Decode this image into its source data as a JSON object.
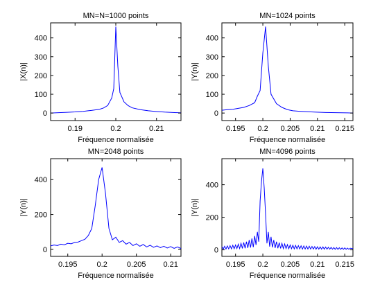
{
  "chart_data": [
    {
      "type": "line",
      "title": "MN=N=1000 points",
      "xlabel": "Fréquence normalisée",
      "ylabel": "|X(n)|",
      "xlim": [
        0.184,
        0.216
      ],
      "ylim": [
        -40,
        480
      ],
      "xticks": [
        0.19,
        0.2,
        0.21
      ],
      "xtick_labels": [
        "0.19",
        "0.2",
        "0.21"
      ],
      "yticks": [
        0,
        100,
        200,
        300,
        400
      ],
      "ytick_labels": [
        "0",
        "100",
        "200",
        "300",
        "400"
      ],
      "grid": false,
      "color": "#0000ff",
      "series": [
        {
          "x": [
            0.184,
            0.186,
            0.188,
            0.19,
            0.192,
            0.194,
            0.196,
            0.197,
            0.198,
            0.199,
            0.1995,
            0.2,
            0.2005,
            0.201,
            0.202,
            0.203,
            0.204,
            0.206,
            0.208,
            0.21,
            0.212,
            0.214,
            0.216
          ],
          "y": [
            0,
            2,
            4,
            6,
            9,
            14,
            20,
            27,
            40,
            80,
            130,
            460,
            250,
            110,
            60,
            40,
            28,
            18,
            12,
            8,
            5,
            3,
            1
          ]
        }
      ]
    },
    {
      "type": "line",
      "title": "MN=1024 points",
      "xlabel": "Fréquence normalisée",
      "ylabel": "|Y(n)|",
      "xlim": [
        0.1925,
        0.2165
      ],
      "ylim": [
        -40,
        480
      ],
      "xticks": [
        0.195,
        0.2,
        0.205,
        0.21,
        0.215
      ],
      "xtick_labels": [
        "0.195",
        "0.2",
        "0.205",
        "0.21",
        "0.215"
      ],
      "yticks": [
        0,
        100,
        200,
        300,
        400
      ],
      "ytick_labels": [
        "0",
        "100",
        "200",
        "300",
        "400"
      ],
      "grid": false,
      "color": "#0000ff",
      "series": [
        {
          "x": [
            0.1925,
            0.1935,
            0.1945,
            0.1955,
            0.1965,
            0.1975,
            0.1985,
            0.199,
            0.1995,
            0.2,
            0.2005,
            0.201,
            0.2015,
            0.2025,
            0.2035,
            0.2045,
            0.2055,
            0.2065,
            0.2075,
            0.2095,
            0.2115,
            0.2135,
            0.2155,
            0.2165
          ],
          "y": [
            15,
            18,
            20,
            25,
            30,
            40,
            55,
            90,
            120,
            320,
            460,
            250,
            100,
            50,
            30,
            18,
            12,
            10,
            8,
            5,
            3,
            2,
            1,
            0
          ]
        }
      ]
    },
    {
      "type": "line",
      "title": "MN=2048 points",
      "xlabel": "Fréquence normalisée",
      "ylabel": "|Y(n)|",
      "xlim": [
        0.1925,
        0.2115
      ],
      "ylim": [
        -40,
        520
      ],
      "xticks": [
        0.195,
        0.2,
        0.205,
        0.21
      ],
      "xtick_labels": [
        "0.195",
        "0.2",
        "0.205",
        "0.21"
      ],
      "yticks": [
        0,
        200,
        400
      ],
      "ytick_labels": [
        "0",
        "200",
        "400"
      ],
      "grid": false,
      "color": "#0000ff",
      "series": [
        {
          "x": [
            0.1925,
            0.193,
            0.1935,
            0.194,
            0.1945,
            0.195,
            0.1955,
            0.196,
            0.1965,
            0.197,
            0.1975,
            0.198,
            0.1985,
            0.199,
            0.1995,
            0.2,
            0.2005,
            0.201,
            0.2015,
            0.202,
            0.2025,
            0.203,
            0.2035,
            0.204,
            0.2045,
            0.205,
            0.2055,
            0.206,
            0.2065,
            0.207,
            0.2075,
            0.208,
            0.2085,
            0.209,
            0.2095,
            0.21,
            0.2105,
            0.211,
            0.2115
          ],
          "y": [
            20,
            25,
            22,
            30,
            26,
            35,
            32,
            40,
            42,
            50,
            58,
            80,
            120,
            250,
            400,
            470,
            320,
            120,
            55,
            70,
            40,
            50,
            30,
            40,
            22,
            32,
            18,
            28,
            14,
            24,
            12,
            20,
            10,
            18,
            8,
            16,
            6,
            14,
            5
          ]
        }
      ]
    },
    {
      "type": "line",
      "title": "MN=4096 points",
      "xlabel": "Fréquence normalisée",
      "ylabel": "|Y(n)|",
      "xlim": [
        0.1925,
        0.2165
      ],
      "ylim": [
        -40,
        560
      ],
      "xticks": [
        0.195,
        0.2,
        0.205,
        0.21,
        0.215
      ],
      "xtick_labels": [
        "0.195",
        "0.2",
        "0.205",
        "0.21",
        "0.215"
      ],
      "yticks": [
        0,
        200,
        400
      ],
      "ytick_labels": [
        "0",
        "200",
        "400"
      ],
      "grid": false,
      "color": "#0000ff",
      "series": [
        {
          "x": [
            0.1925,
            0.19275,
            0.193,
            0.19325,
            0.1935,
            0.19375,
            0.194,
            0.19425,
            0.1945,
            0.19475,
            0.195,
            0.19525,
            0.1955,
            0.19575,
            0.196,
            0.19625,
            0.1965,
            0.19675,
            0.197,
            0.19725,
            0.1975,
            0.19775,
            0.198,
            0.19825,
            0.1985,
            0.19875,
            0.199,
            0.19925,
            0.1995,
            0.19975,
            0.2,
            0.20025,
            0.2005,
            0.20075,
            0.201,
            0.20125,
            0.2015,
            0.20175,
            0.202,
            0.20225,
            0.2025,
            0.20275,
            0.203,
            0.20325,
            0.2035,
            0.20375,
            0.204,
            0.20425,
            0.2045,
            0.20475,
            0.205,
            0.20525,
            0.2055,
            0.20575,
            0.206,
            0.20625,
            0.2065,
            0.20675,
            0.207,
            0.20725,
            0.2075,
            0.20775,
            0.208,
            0.20825,
            0.2085,
            0.20875,
            0.209,
            0.20925,
            0.2095,
            0.20975,
            0.21,
            0.21025,
            0.2105,
            0.21075,
            0.211,
            0.21125,
            0.2115,
            0.21175,
            0.212,
            0.21225,
            0.2125,
            0.21275,
            0.213,
            0.21325,
            0.2135,
            0.21375,
            0.214,
            0.21425,
            0.2145,
            0.21475,
            0.215,
            0.21525,
            0.2155,
            0.21575,
            0.216,
            0.2165
          ],
          "y": [
            20,
            5,
            22,
            5,
            24,
            6,
            26,
            6,
            28,
            7,
            30,
            8,
            35,
            8,
            40,
            9,
            45,
            10,
            50,
            12,
            60,
            14,
            70,
            16,
            85,
            30,
            110,
            50,
            300,
            420,
            500,
            380,
            220,
            40,
            110,
            20,
            80,
            15,
            60,
            12,
            50,
            10,
            44,
            9,
            40,
            8,
            36,
            8,
            32,
            7,
            30,
            7,
            28,
            6,
            27,
            6,
            26,
            6,
            25,
            5,
            24,
            5,
            23,
            5,
            22,
            5,
            21,
            5,
            20,
            4,
            19,
            4,
            18,
            4,
            18,
            4,
            17,
            4,
            16,
            4,
            15,
            4,
            14,
            3,
            14,
            3,
            13,
            3,
            12,
            3,
            12,
            3,
            11,
            3,
            10,
            8
          ]
        }
      ]
    }
  ]
}
